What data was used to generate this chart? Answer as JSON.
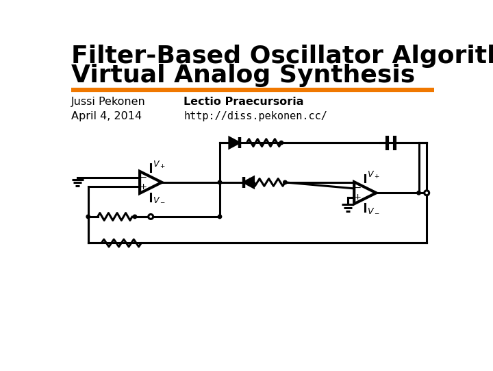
{
  "title_line1": "Filter-Based Oscillator Algorithms for",
  "title_line2": "Virtual Analog Synthesis",
  "title_fontsize": 26,
  "author": "Jussi Pekonen",
  "event": "Lectio Praecursoria",
  "date": "April 4, 2014",
  "url": "http://diss.pekonen.cc/",
  "divider_color": "#F07800",
  "bg_color": "#ffffff",
  "text_color": "#000000",
  "lw": 2.2
}
